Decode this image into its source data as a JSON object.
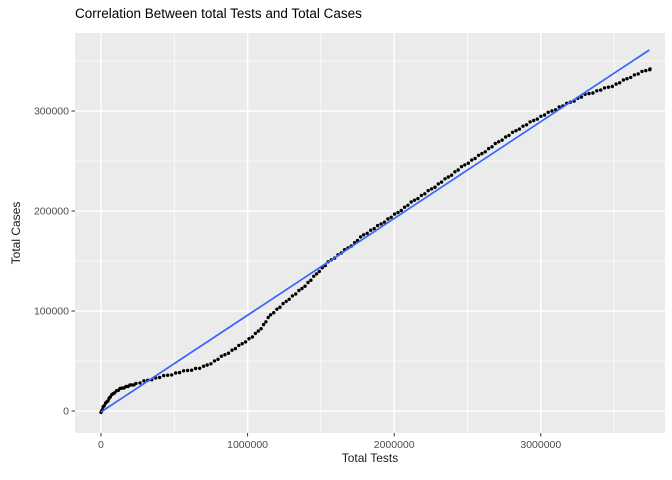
{
  "chart_data": {
    "type": "scatter",
    "title": "Correlation Between total Tests and Total Cases",
    "xlabel": "Total Tests",
    "ylabel": "Total Cases",
    "x_ticks": [
      0,
      1000000,
      2000000,
      3000000
    ],
    "y_ticks": [
      0,
      100000,
      200000,
      300000
    ],
    "x_minor_ticks": [
      500000,
      1500000,
      2500000,
      3500000
    ],
    "y_minor_ticks": [
      50000,
      150000,
      250000,
      350000
    ],
    "x_range": [
      -177000,
      3847000
    ],
    "y_range": [
      -22000,
      378000
    ],
    "grid": "white major+minor gridlines on gray panel",
    "legend": "none",
    "colors": {
      "panel_bg": "#EBEBEB",
      "grid": "#FFFFFF",
      "points": "#000000",
      "smooth_line": "#3366FF",
      "tick_label": "#4D4D4D",
      "tick_mark": "#333333",
      "title": "#000000"
    },
    "smooth_line": {
      "type": "linear_regression",
      "x": [
        0,
        3740000
      ],
      "y": [
        -1000,
        361000
      ]
    },
    "curve_points": [
      [
        0,
        -2000
      ],
      [
        15000,
        4000
      ],
      [
        40000,
        9000
      ],
      [
        62000,
        14000
      ],
      [
        95000,
        19000
      ],
      [
        145000,
        23000
      ],
      [
        210000,
        26000
      ],
      [
        280000,
        29000
      ],
      [
        350000,
        32000
      ],
      [
        420000,
        34500
      ],
      [
        490000,
        37000
      ],
      [
        560000,
        39500
      ],
      [
        620000,
        41500
      ],
      [
        690000,
        43500
      ],
      [
        760000,
        48500
      ],
      [
        825000,
        54500
      ],
      [
        900000,
        61000
      ],
      [
        970000,
        68000
      ],
      [
        1040000,
        75000
      ],
      [
        1100000,
        84000
      ],
      [
        1155000,
        96000
      ],
      [
        1220000,
        104000
      ],
      [
        1290000,
        113000
      ],
      [
        1360000,
        121000
      ],
      [
        1425000,
        130000
      ],
      [
        1495000,
        141000
      ],
      [
        1560000,
        150000
      ],
      [
        1665000,
        161000
      ],
      [
        1730000,
        168000
      ],
      [
        1790000,
        176000
      ],
      [
        1900000,
        186000
      ],
      [
        2020000,
        198000
      ],
      [
        2130000,
        210000
      ],
      [
        2245000,
        221000
      ],
      [
        2360000,
        233000
      ],
      [
        2470000,
        245000
      ],
      [
        2585000,
        256000
      ],
      [
        2720000,
        270000
      ],
      [
        2860000,
        283000
      ],
      [
        2995000,
        294000
      ],
      [
        3130000,
        304000
      ],
      [
        3220000,
        310000
      ],
      [
        3300000,
        316000
      ],
      [
        3405000,
        321000
      ],
      [
        3505000,
        326000
      ],
      [
        3610000,
        334000
      ],
      [
        3690000,
        339000
      ],
      [
        3745000,
        342000
      ]
    ]
  }
}
